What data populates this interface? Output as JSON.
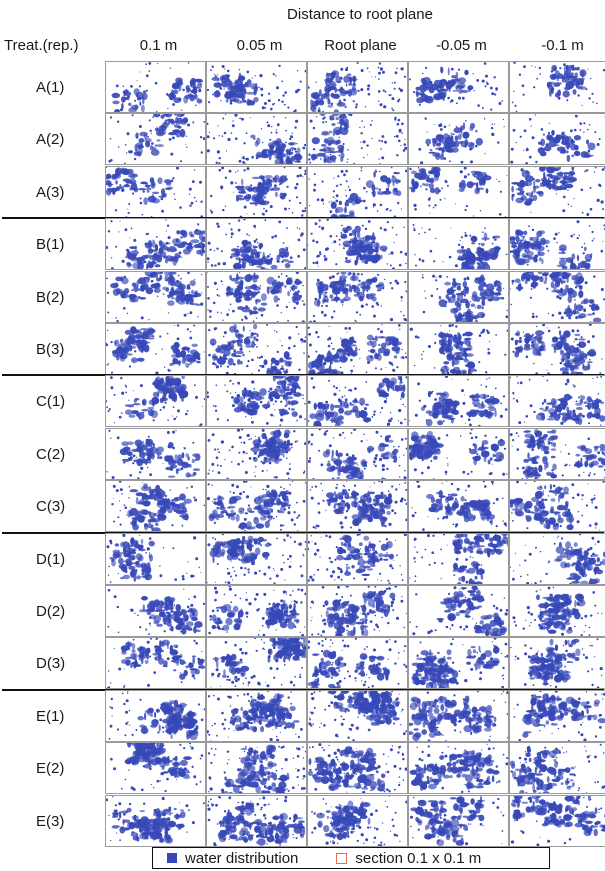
{
  "figure": {
    "super_title": "Distance to root plane",
    "row_header": "Treat.(rep.)",
    "columns": [
      "0.1 m",
      "0.05 m",
      "Root plane",
      "-0.05 m",
      "-0.1 m"
    ],
    "groups": [
      {
        "treatment": "A",
        "rows": [
          "A(1)",
          "A(2)",
          "A(3)"
        ]
      },
      {
        "treatment": "B",
        "rows": [
          "B(1)",
          "B(2)",
          "B(3)"
        ]
      },
      {
        "treatment": "C",
        "rows": [
          "C(1)",
          "C(2)",
          "C(3)"
        ]
      },
      {
        "treatment": "D",
        "rows": [
          "D(1)",
          "D(2)",
          "D(3)"
        ]
      },
      {
        "treatment": "E",
        "rows": [
          "E(1)",
          "E(2)",
          "E(3)"
        ]
      }
    ],
    "legend": {
      "water": "water distribution",
      "section": "section 0.1 x 0.1 m"
    },
    "colors": {
      "water": "#3748b8",
      "section_outline": "#e06a4a",
      "separator": "#111111"
    }
  }
}
